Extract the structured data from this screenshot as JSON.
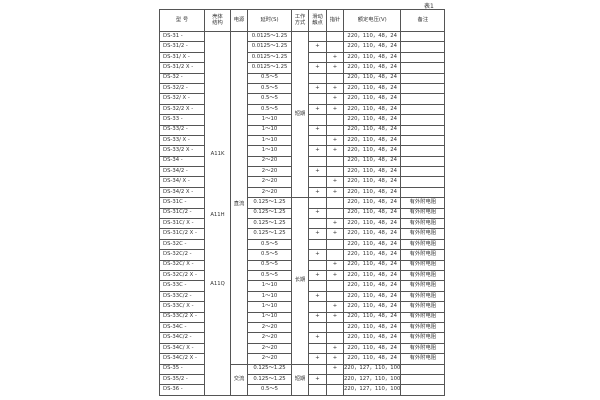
{
  "caption": "表1",
  "headers": {
    "model": "型  号",
    "shell": "壳体\n结构",
    "power": "电源",
    "delay": "延时(S)",
    "mode": "工作\n方式",
    "slide": "滑动\n触点",
    "pointer": "指针",
    "voltage": "额定电压(V)",
    "note": "备注"
  },
  "shell_labels": [
    "A11K",
    "A11H",
    "A11Q"
  ],
  "power_labels": [
    "直流",
    "交流"
  ],
  "mode_labels": [
    "短期",
    "长期",
    "短期"
  ],
  "rows": [
    [
      "DS-31 -",
      "0.0125～1.25",
      "",
      "",
      "220，110，48，24",
      ""
    ],
    [
      "DS-31/2 -",
      "0.0125～1.25",
      "+",
      "",
      "220，110，48，24",
      ""
    ],
    [
      "DS-31/ X -",
      "0.0125～1.25",
      "",
      "+",
      "220，110，48，24",
      ""
    ],
    [
      "DS-31/2 X -",
      "0.0125～1.25",
      "+",
      "+",
      "220，110，48，24",
      ""
    ],
    [
      "DS-32 -",
      "0.5～5",
      "",
      "",
      "220，110，48，24",
      ""
    ],
    [
      "DS-32/2 -",
      "0.5～5",
      "+",
      "+",
      "220，110，48，24",
      ""
    ],
    [
      "DS-32/ X -",
      "0.5～5",
      "",
      "+",
      "220，110，48，24",
      ""
    ],
    [
      "DS-32/2 X -",
      "0.5～5",
      "+",
      "+",
      "220，110，48，24",
      ""
    ],
    [
      "DS-33 -",
      "1～10",
      "",
      "",
      "220，110，48，24",
      ""
    ],
    [
      "DS-33/2 -",
      "1～10",
      "+",
      "",
      "220，110，48，24",
      ""
    ],
    [
      "DS-33/ X -",
      "1～10",
      "",
      "+",
      "220，110，48，24",
      ""
    ],
    [
      "DS-33/2 X -",
      "1～10",
      "+",
      "+",
      "220，110，48，24",
      ""
    ],
    [
      "DS-34 -",
      "2～20",
      "",
      "",
      "220，110，48，24",
      ""
    ],
    [
      "DS-34/2 -",
      "2～20",
      "+",
      "",
      "220，110，48，24",
      ""
    ],
    [
      "DS-34/ X -",
      "2～20",
      "",
      "+",
      "220，110，48，24",
      ""
    ],
    [
      "DS-34/2 X -",
      "2～20",
      "+",
      "+",
      "220，110，48，24",
      ""
    ],
    [
      "DS-31C -",
      "0.125～1.25",
      "",
      "",
      "220，110，48，24",
      "有外附电阻"
    ],
    [
      "DS-31C/2 -",
      "0.125～1.25",
      "+",
      "",
      "220，110，48，24",
      "有外附电阻"
    ],
    [
      "DS-31C/ X -",
      "0.125～1.25",
      "",
      "+",
      "220，110，48，24",
      "有外附电阻"
    ],
    [
      "DS-31C/2 X -",
      "0.125～1.25",
      "+",
      "+",
      "220，110，48，24",
      "有外附电阻"
    ],
    [
      "DS-32C -",
      "0.5～5",
      "",
      "",
      "220，110，48，24",
      "有外附电阻"
    ],
    [
      "DS-32C/2 -",
      "0.5～5",
      "+",
      "",
      "220，110，48，24",
      "有外附电阻"
    ],
    [
      "DS-32C/ X -",
      "0.5～5",
      "",
      "+",
      "220，110，48，24",
      "有外附电阻"
    ],
    [
      "DS-32C/2 X -",
      "0.5～5",
      "+",
      "+",
      "220，110，48，24",
      "有外附电阻"
    ],
    [
      "DS-33C -",
      "1～10",
      "",
      "",
      "220，110，48，24",
      "有外附电阻"
    ],
    [
      "DS-33C/2 -",
      "1～10",
      "+",
      "",
      "220，110，48，24",
      "有外附电阻"
    ],
    [
      "DS-33C/ X -",
      "1～10",
      "",
      "+",
      "220，110，48，24",
      "有外附电阻"
    ],
    [
      "DS-33C/2 X -",
      "1～10",
      "+",
      "+",
      "220，110，48，24",
      "有外附电阻"
    ],
    [
      "DS-34C -",
      "2～20",
      "",
      "",
      "220，110，48，24",
      "有外附电阻"
    ],
    [
      "DS-34C/2 -",
      "2～20",
      "+",
      "",
      "220，110，48，24",
      "有外附电阻"
    ],
    [
      "DS-34C/ X -",
      "2～20",
      "",
      "+",
      "220，110，48，24",
      "有外附电阻"
    ],
    [
      "DS-34C/2 X -",
      "2～20",
      "+",
      "+",
      "220，110，48，24",
      "有外附电阻"
    ],
    [
      "DS-35 -",
      "0.125～1.25",
      "",
      "+",
      "220，127，110，100",
      ""
    ],
    [
      "DS-35/2  -",
      "0.125～1.25",
      "+",
      "",
      "220，127，110，100",
      ""
    ],
    [
      "DS-36 -",
      "0.5～5",
      "",
      "",
      "220，127，110，100",
      ""
    ]
  ]
}
